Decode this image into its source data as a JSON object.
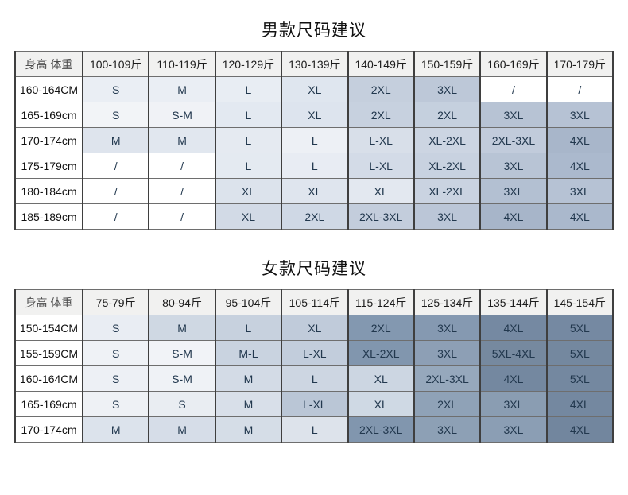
{
  "page": {
    "background": "#ffffff"
  },
  "colors": {
    "border_vertical": "#3f3f3f",
    "border_horizontal": "#6e6e6e",
    "header_bg": "#f1f1f0",
    "label_bg": "#ffffff",
    "cell_text": "#22384e",
    "header_text": "#1c1c1c",
    "title_text": "#111111"
  },
  "chart_data": [
    {
      "type": "table",
      "title": "男款尺码建议",
      "corner_header": "身高 体重",
      "column_headers": [
        "100-109斤",
        "110-119斤",
        "120-129斤",
        "130-139斤",
        "140-149斤",
        "150-159斤",
        "160-169斤",
        "170-179斤"
      ],
      "rows": [
        {
          "label": "160-164CM",
          "cells": [
            {
              "text": "S",
              "bg": "#eaeef4"
            },
            {
              "text": "M",
              "bg": "#eaeef4"
            },
            {
              "text": "L",
              "bg": "#e8edf3"
            },
            {
              "text": "XL",
              "bg": "#dfe6ef"
            },
            {
              "text": "2XL",
              "bg": "#c5cfdd"
            },
            {
              "text": "3XL",
              "bg": "#bdc8d8"
            },
            {
              "text": "/",
              "bg": "#ffffff"
            },
            {
              "text": "/",
              "bg": "#ffffff"
            }
          ]
        },
        {
          "label": "165-169cm",
          "cells": [
            {
              "text": "S",
              "bg": "#f2f4f7"
            },
            {
              "text": "S-M",
              "bg": "#f0f2f6"
            },
            {
              "text": "L",
              "bg": "#e3e9f1"
            },
            {
              "text": "XL",
              "bg": "#dde4ee"
            },
            {
              "text": "2XL",
              "bg": "#c7d1df"
            },
            {
              "text": "2XL",
              "bg": "#c5d0de"
            },
            {
              "text": "3XL",
              "bg": "#b7c3d4"
            },
            {
              "text": "3XL",
              "bg": "#b6c2d4"
            }
          ]
        },
        {
          "label": "170-174cm",
          "cells": [
            {
              "text": "M",
              "bg": "#dee4ed"
            },
            {
              "text": "M",
              "bg": "#e1e7ef"
            },
            {
              "text": "L",
              "bg": "#e5eaf1"
            },
            {
              "text": "L",
              "bg": "#edf0f5"
            },
            {
              "text": "L-XL",
              "bg": "#d8dfe9"
            },
            {
              "text": "XL-2XL",
              "bg": "#ccd5e2"
            },
            {
              "text": "2XL-3XL",
              "bg": "#c1cbdb"
            },
            {
              "text": "4XL",
              "bg": "#a8b6ca"
            }
          ]
        },
        {
          "label": "175-179cm",
          "cells": [
            {
              "text": "/",
              "bg": "#ffffff"
            },
            {
              "text": "/",
              "bg": "#ffffff"
            },
            {
              "text": "L",
              "bg": "#e4eaf1"
            },
            {
              "text": "L",
              "bg": "#e8ecf3"
            },
            {
              "text": "L-XL",
              "bg": "#d3dbe7"
            },
            {
              "text": "XL-2XL",
              "bg": "#c8d2e0"
            },
            {
              "text": "3XL",
              "bg": "#b8c4d5"
            },
            {
              "text": "4XL",
              "bg": "#abb9cd"
            }
          ]
        },
        {
          "label": "180-184cm",
          "cells": [
            {
              "text": "/",
              "bg": "#ffffff"
            },
            {
              "text": "/",
              "bg": "#ffffff"
            },
            {
              "text": "XL",
              "bg": "#dce3ec"
            },
            {
              "text": "XL",
              "bg": "#dfe5ee"
            },
            {
              "text": "XL",
              "bg": "#e3e8f0"
            },
            {
              "text": "XL-2XL",
              "bg": "#cad3e1"
            },
            {
              "text": "3XL",
              "bg": "#b3c0d2"
            },
            {
              "text": "3XL",
              "bg": "#b6c2d4"
            }
          ]
        },
        {
          "label": "185-189cm",
          "cells": [
            {
              "text": "/",
              "bg": "#ffffff"
            },
            {
              "text": "/",
              "bg": "#ffffff"
            },
            {
              "text": "XL",
              "bg": "#d2dae6"
            },
            {
              "text": "2XL",
              "bg": "#cfd8e5"
            },
            {
              "text": "2XL-3XL",
              "bg": "#c3cddc"
            },
            {
              "text": "3XL",
              "bg": "#bbc6d7"
            },
            {
              "text": "4XL",
              "bg": "#a7b5c9"
            },
            {
              "text": "4XL",
              "bg": "#aab8cc"
            }
          ]
        }
      ]
    },
    {
      "type": "table",
      "title": "女款尺码建议",
      "corner_header": "身高 体重",
      "column_headers": [
        "75-79斤",
        "80-94斤",
        "95-104斤",
        "105-114斤",
        "115-124斤",
        "125-134斤",
        "135-144斤",
        "145-154斤"
      ],
      "rows": [
        {
          "label": "150-154CM",
          "cells": [
            {
              "text": "S",
              "bg": "#e9edf3"
            },
            {
              "text": "M",
              "bg": "#cfd8e3"
            },
            {
              "text": "L",
              "bg": "#c7d1de"
            },
            {
              "text": "XL",
              "bg": "#c0cbda"
            },
            {
              "text": "2XL",
              "bg": "#8398b0"
            },
            {
              "text": "3XL",
              "bg": "#8599b1"
            },
            {
              "text": "4XL",
              "bg": "#7589a2"
            },
            {
              "text": "5XL",
              "bg": "#7589a2"
            }
          ]
        },
        {
          "label": "155-159CM",
          "cells": [
            {
              "text": "S",
              "bg": "#eff2f6"
            },
            {
              "text": "S-M",
              "bg": "#f1f3f7"
            },
            {
              "text": "M-L",
              "bg": "#c9d3e0"
            },
            {
              "text": "L-XL",
              "bg": "#c2cddc"
            },
            {
              "text": "XL-2XL",
              "bg": "#8196ae"
            },
            {
              "text": "3XL",
              "bg": "#8d9fb5"
            },
            {
              "text": "5XL-4XL",
              "bg": "#76899f"
            },
            {
              "text": "5XL",
              "bg": "#74889f"
            }
          ]
        },
        {
          "label": "160-164CM",
          "cells": [
            {
              "text": "S",
              "bg": "#edf0f5"
            },
            {
              "text": "S-M",
              "bg": "#eff2f6"
            },
            {
              "text": "M",
              "bg": "#d3dbe6"
            },
            {
              "text": "L",
              "bg": "#cdd6e2"
            },
            {
              "text": "XL",
              "bg": "#ccd6e2"
            },
            {
              "text": "2XL-3XL",
              "bg": "#96a8bc"
            },
            {
              "text": "4XL",
              "bg": "#7488a0"
            },
            {
              "text": "5XL",
              "bg": "#7488a0"
            }
          ]
        },
        {
          "label": "165-169cm",
          "cells": [
            {
              "text": "S",
              "bg": "#eef1f5"
            },
            {
              "text": "S",
              "bg": "#e9edf2"
            },
            {
              "text": "M",
              "bg": "#d8dfe9"
            },
            {
              "text": "L-XL",
              "bg": "#bac6d6"
            },
            {
              "text": "XL",
              "bg": "#cfd9e4"
            },
            {
              "text": "2XL",
              "bg": "#8fa2b7"
            },
            {
              "text": "3XL",
              "bg": "#8a9db2"
            },
            {
              "text": "4XL",
              "bg": "#7488a0"
            }
          ]
        },
        {
          "label": "170-174cm",
          "cells": [
            {
              "text": "M",
              "bg": "#dce3ec"
            },
            {
              "text": "M",
              "bg": "#d6dde8"
            },
            {
              "text": "M",
              "bg": "#d5dde7"
            },
            {
              "text": "L",
              "bg": "#dde3eb"
            },
            {
              "text": "2XL-3XL",
              "bg": "#8196ae"
            },
            {
              "text": "3XL",
              "bg": "#8da0b5"
            },
            {
              "text": "3XL",
              "bg": "#8b9eb4"
            },
            {
              "text": "4XL",
              "bg": "#72869e"
            }
          ]
        }
      ]
    }
  ],
  "tables": [
    {
      "title": "男款尺码建议"
    },
    {
      "title": "女款尺码建议"
    }
  ]
}
